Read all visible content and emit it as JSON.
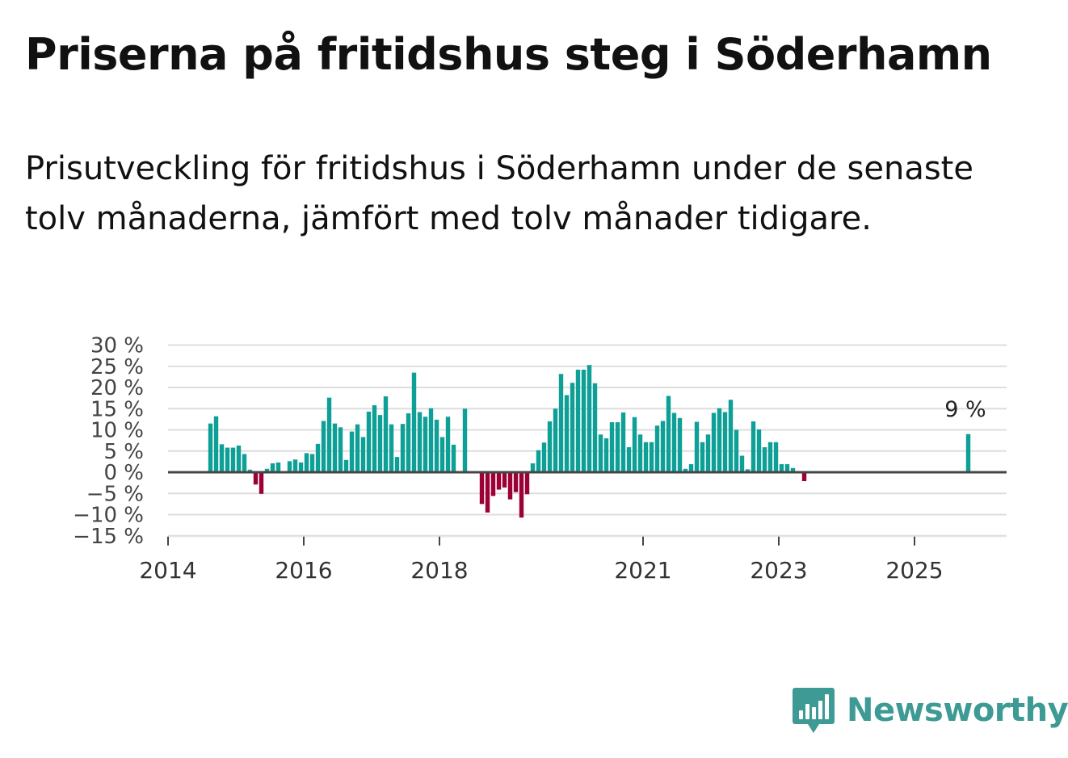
{
  "title": "Priserna på fritidshus steg i Söderhamn",
  "subtitle": "Prisutveckling för fritidshus i Söderhamn under de senaste tolv månaderna, jämfört med tolv månader tidigare.",
  "logo_text": "Newsworthy",
  "colors": {
    "positive": "#0e9f96",
    "negative": "#9c0036",
    "grid": "#dddddd",
    "zero": "#444444",
    "logo": "#3d9a94"
  },
  "chart_data": {
    "type": "bar",
    "ylabel": "",
    "xlabel": "",
    "ylim": [
      -15,
      30
    ],
    "yticks": [
      30,
      25,
      20,
      15,
      10,
      5,
      0,
      -5,
      -10,
      -15
    ],
    "ytick_labels": [
      "30 %",
      "25 %",
      "20 %",
      "15 %",
      "10 %",
      "5 %",
      "0 %",
      "−5 %",
      "−10 %",
      "−15 %"
    ],
    "xticks": [
      2014,
      2016,
      2018,
      2021,
      2023,
      2025
    ],
    "xtick_labels": [
      "2014",
      "2016",
      "2018",
      "2021",
      "2023",
      "2025"
    ],
    "x_start": 2014.0,
    "months_per_bar": 1,
    "start_month": "2014-08",
    "annotation": {
      "label": "9 %",
      "year": 2025.75,
      "value": 9
    },
    "values": [
      11.5,
      13.2,
      6.6,
      5.8,
      5.8,
      6.3,
      4.3,
      0.6,
      -2.9,
      -5.1,
      0.8,
      2.1,
      2.3,
      0,
      2.6,
      3.0,
      2.3,
      4.5,
      4.3,
      6.7,
      12.1,
      17.6,
      11.5,
      10.6,
      2.9,
      9.6,
      11.3,
      8.3,
      14.3,
      15.8,
      13.5,
      17.9,
      11.3,
      3.6,
      11.4,
      13.9,
      23.5,
      14.2,
      13.1,
      15.1,
      12.4,
      8.3,
      13.1,
      6.5,
      0,
      15.0,
      0,
      0,
      -7.5,
      -9.5,
      -5.6,
      -4.1,
      -3.6,
      -6.4,
      -4.7,
      -10.7,
      -5.2,
      2.1,
      5.2,
      7.0,
      12.0,
      15.0,
      23.2,
      18.2,
      21.1,
      24.2,
      24.2,
      25.3,
      21.0,
      8.9,
      8.0,
      11.8,
      11.8,
      14.1,
      5.9,
      13.0,
      8.9,
      7.1,
      7.1,
      11.0,
      12.1,
      18.0,
      14.0,
      12.8,
      0.8,
      1.9,
      11.9,
      7.1,
      8.9,
      14.0,
      15.1,
      14.2,
      17.1,
      10.0,
      3.9,
      0.7,
      12.0,
      10.1,
      5.9,
      7.1,
      7.1,
      1.9,
      1.9,
      1.0,
      0,
      -2.1
    ]
  }
}
